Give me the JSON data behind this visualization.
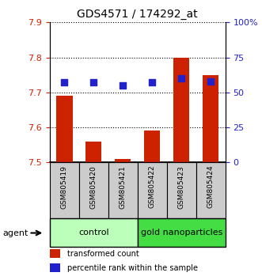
{
  "title": "GDS4571 / 174292_at",
  "samples": [
    "GSM805419",
    "GSM805420",
    "GSM805421",
    "GSM805422",
    "GSM805423",
    "GSM805424"
  ],
  "red_values": [
    7.69,
    7.56,
    7.51,
    7.59,
    7.8,
    7.75
  ],
  "blue_values": [
    57,
    57,
    55,
    57,
    60,
    58
  ],
  "ylim_left": [
    7.5,
    7.9
  ],
  "ylim_right": [
    0,
    100
  ],
  "yticks_left": [
    7.5,
    7.6,
    7.7,
    7.8,
    7.9
  ],
  "yticks_right": [
    0,
    25,
    50,
    75,
    100
  ],
  "ytick_labels_right": [
    "0",
    "25",
    "50",
    "75",
    "100%"
  ],
  "red_color": "#cc2200",
  "blue_color": "#2222cc",
  "bar_base": 7.5,
  "bar_width": 0.55,
  "groups": [
    {
      "label": "control",
      "indices": [
        0,
        1,
        2
      ],
      "color": "#bbffbb"
    },
    {
      "label": "gold nanoparticles",
      "indices": [
        3,
        4,
        5
      ],
      "color": "#44dd44"
    }
  ],
  "agent_label": "agent",
  "legend": [
    {
      "color": "#cc2200",
      "label": "transformed count"
    },
    {
      "color": "#2222cc",
      "label": "percentile rank within the sample"
    }
  ],
  "xlabel_area_color": "#cccccc",
  "title_color": "#000000",
  "title_fontsize": 10,
  "bar_label_fontsize": 6.5,
  "group_label_fontsize": 8,
  "legend_fontsize": 7,
  "tick_fontsize": 8
}
